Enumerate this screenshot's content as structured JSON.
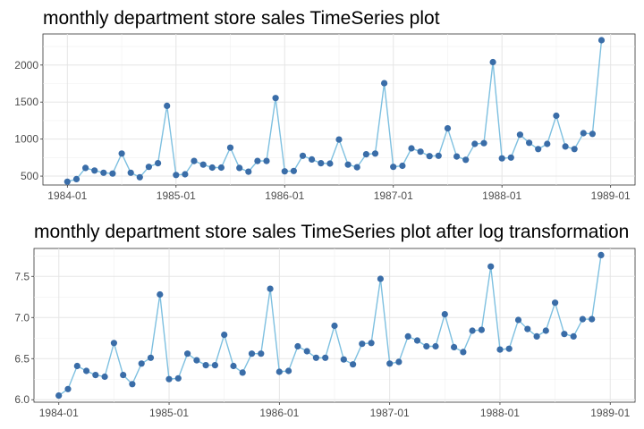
{
  "chart_data": [
    {
      "type": "line",
      "title": "monthly department store sales TimeSeries plot",
      "xlabel": "",
      "ylabel": "",
      "x": [
        "1984-01",
        "1984-02",
        "1984-03",
        "1984-04",
        "1984-05",
        "1984-06",
        "1984-07",
        "1984-08",
        "1984-09",
        "1984-10",
        "1984-11",
        "1984-12",
        "1985-01",
        "1985-02",
        "1985-03",
        "1985-04",
        "1985-05",
        "1985-06",
        "1985-07",
        "1985-08",
        "1985-09",
        "1985-10",
        "1985-11",
        "1985-12",
        "1986-01",
        "1986-02",
        "1986-03",
        "1986-04",
        "1986-05",
        "1986-06",
        "1986-07",
        "1986-08",
        "1986-09",
        "1986-10",
        "1986-11",
        "1986-12",
        "1987-01",
        "1987-02",
        "1987-03",
        "1987-04",
        "1987-05",
        "1987-06",
        "1987-07",
        "1987-08",
        "1987-09",
        "1987-10",
        "1987-11",
        "1987-12",
        "1988-01",
        "1988-02",
        "1988-03",
        "1988-04",
        "1988-05",
        "1988-06",
        "1988-07",
        "1988-08",
        "1988-09",
        "1988-10",
        "1988-11",
        "1988-12"
      ],
      "values": [
        425,
        460,
        610,
        575,
        545,
        535,
        805,
        545,
        485,
        625,
        675,
        1450,
        515,
        525,
        705,
        655,
        615,
        615,
        885,
        610,
        560,
        705,
        705,
        1555,
        565,
        570,
        775,
        725,
        675,
        670,
        995,
        655,
        620,
        795,
        805,
        1755,
        625,
        640,
        875,
        830,
        770,
        775,
        1145,
        765,
        720,
        935,
        945,
        2040,
        740,
        750,
        1060,
        950,
        865,
        935,
        1315,
        900,
        865,
        1080,
        1070,
        2335
      ],
      "ylim": [
        380,
        2420
      ],
      "yticks": [
        500,
        1000,
        1500,
        2000
      ],
      "xticks": [
        "1984-01",
        "1985-01",
        "1986-01",
        "1987-01",
        "1988-01",
        "1989-01"
      ],
      "grid": true,
      "colors": {
        "line": "#7ec0e0",
        "point": "#3a6da8"
      }
    },
    {
      "type": "line",
      "title": "monthly department store sales TimeSeries plot after log transformation",
      "xlabel": "",
      "ylabel": "",
      "x": [
        "1984-01",
        "1984-02",
        "1984-03",
        "1984-04",
        "1984-05",
        "1984-06",
        "1984-07",
        "1984-08",
        "1984-09",
        "1984-10",
        "1984-11",
        "1984-12",
        "1985-01",
        "1985-02",
        "1985-03",
        "1985-04",
        "1985-05",
        "1985-06",
        "1985-07",
        "1985-08",
        "1985-09",
        "1985-10",
        "1985-11",
        "1985-12",
        "1986-01",
        "1986-02",
        "1986-03",
        "1986-04",
        "1986-05",
        "1986-06",
        "1986-07",
        "1986-08",
        "1986-09",
        "1986-10",
        "1986-11",
        "1986-12",
        "1987-01",
        "1987-02",
        "1987-03",
        "1987-04",
        "1987-05",
        "1987-06",
        "1987-07",
        "1987-08",
        "1987-09",
        "1987-10",
        "1987-11",
        "1987-12",
        "1988-01",
        "1988-02",
        "1988-03",
        "1988-04",
        "1988-05",
        "1988-06",
        "1988-07",
        "1988-08",
        "1988-09",
        "1988-10",
        "1988-11",
        "1988-12"
      ],
      "values": [
        6.05,
        6.13,
        6.41,
        6.35,
        6.3,
        6.28,
        6.69,
        6.3,
        6.19,
        6.44,
        6.51,
        7.28,
        6.25,
        6.26,
        6.56,
        6.48,
        6.42,
        6.42,
        6.79,
        6.41,
        6.33,
        6.56,
        6.56,
        7.35,
        6.34,
        6.35,
        6.65,
        6.59,
        6.51,
        6.51,
        6.9,
        6.49,
        6.43,
        6.68,
        6.69,
        7.47,
        6.44,
        6.46,
        6.77,
        6.72,
        6.65,
        6.65,
        7.04,
        6.64,
        6.58,
        6.84,
        6.85,
        7.62,
        6.61,
        6.62,
        6.97,
        6.86,
        6.77,
        6.84,
        7.18,
        6.8,
        6.77,
        6.98,
        6.98,
        7.76
      ],
      "ylim": [
        5.97,
        7.84
      ],
      "yticks": [
        "6.0",
        "6.5",
        "7.0",
        "7.5"
      ],
      "xticks": [
        "1984-01",
        "1985-01",
        "1986-01",
        "1987-01",
        "1988-01",
        "1989-01"
      ],
      "grid": true,
      "colors": {
        "line": "#7ec0e0",
        "point": "#3a6da8"
      }
    }
  ]
}
